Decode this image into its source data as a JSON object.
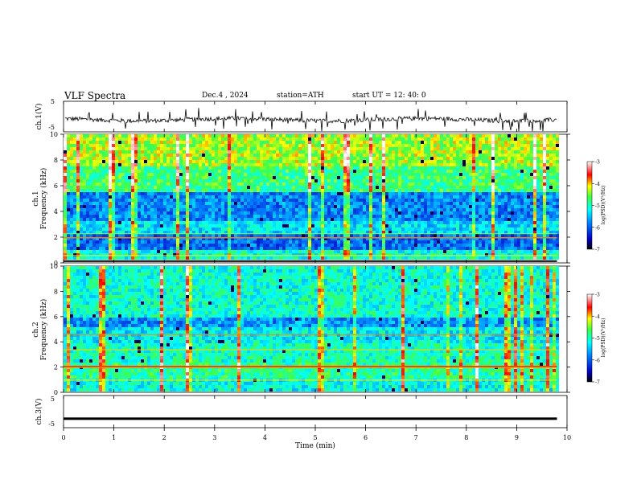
{
  "header": {
    "title": "VLF  Spectra",
    "date": "Dec.4  , 2024",
    "station": "station=ATH",
    "start_ut": "start  UT  =   12: 40: 0"
  },
  "chart_data": [
    {
      "type": "line",
      "ylabel": "ch.1(V)",
      "yticks": [
        "5",
        "-5"
      ],
      "ylim": [
        -5,
        5
      ],
      "x_range_min": [
        0,
        9.8
      ],
      "description_level": "noisy signal around -1 V with frequent spikes"
    },
    {
      "type": "heatmap",
      "ylabel_line1": "ch.1",
      "ylabel_line2": "Frequency  (kHz)",
      "yticks": [
        "0",
        "2",
        "4",
        "6",
        "8",
        "10"
      ],
      "ylim": [
        0,
        10
      ],
      "colorbar": {
        "label": "log(PSD)(V²/Hz)",
        "ticks": [
          "-3",
          "-4",
          "-5",
          "-6",
          "-7"
        ],
        "range": [
          -7,
          -3
        ]
      }
    },
    {
      "type": "heatmap",
      "ylabel_line1": "ch.2",
      "ylabel_line2": "Frequency  (kHz)",
      "yticks": [
        "0",
        "2",
        "4",
        "6",
        "8",
        "10"
      ],
      "ylim": [
        0,
        10
      ],
      "colorbar": {
        "label": "log(PSD)(V²/Hz)",
        "ticks": [
          "-3",
          "-4",
          "-5",
          "-6",
          "-7"
        ],
        "range": [
          -7,
          -3
        ]
      }
    },
    {
      "type": "line",
      "ylabel": "ch.3(V)",
      "yticks": [
        "5",
        "-5"
      ],
      "ylim": [
        -5,
        5
      ],
      "constant_value": -2.2,
      "xticks": [
        "0",
        "1",
        "2",
        "3",
        "4",
        "5",
        "6",
        "7",
        "8",
        "9",
        "10"
      ],
      "xlim": [
        0,
        10
      ],
      "xlabel": "Time  (min)"
    }
  ]
}
